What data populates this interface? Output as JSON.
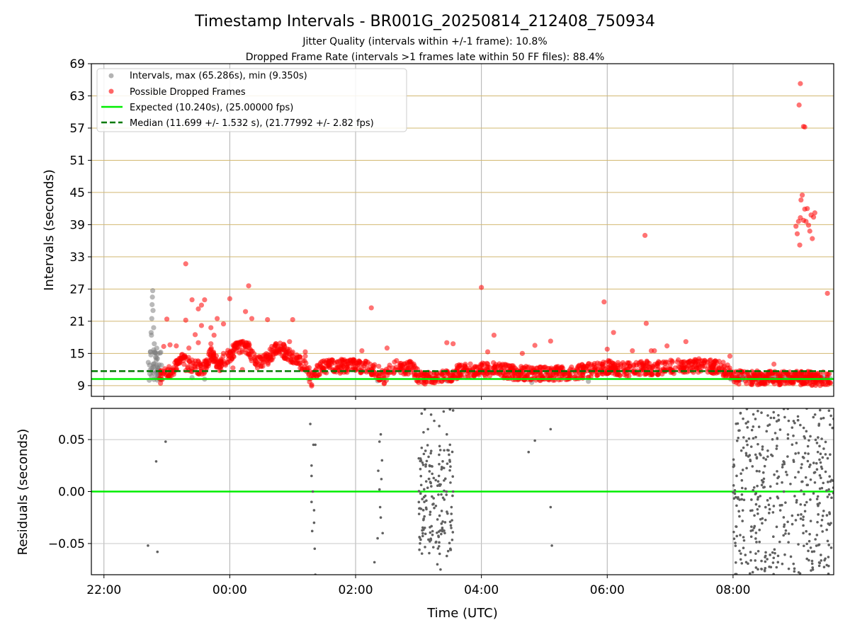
{
  "chart_data": [
    {
      "type": "scatter",
      "title": "Timestamp Intervals - BR001G_20250814_212408_750934",
      "subtitle_lines": [
        "Jitter Quality (intervals within +/-1 frame): 10.8%",
        "Dropped Frame Rate (intervals >1 frames late within 50 FF files): 88.4%"
      ],
      "xlabel": "",
      "ylabel": "Intervals (seconds)",
      "ylim": [
        7,
        69
      ],
      "yticks": [
        9,
        15,
        21,
        27,
        33,
        39,
        45,
        51,
        57,
        63,
        69
      ],
      "ytick_labels": [
        "9",
        "15",
        "21",
        "27",
        "33",
        "39",
        "45",
        "51",
        "57",
        "63",
        "69"
      ],
      "xlim": [
        -2.2,
        9.6
      ],
      "xticks": [
        -2,
        0,
        2,
        4,
        6,
        8
      ],
      "grid": true,
      "legend_position": "upper-left",
      "reference_lines": [
        {
          "name": "Expected (10.240s), (25.00000 fps)",
          "y": 10.24,
          "color": "#00ee00",
          "style": "solid"
        },
        {
          "name": "Median (11.699 +/- 1.532 s), (21.77992 +/- 2.82 fps)",
          "y": 11.699,
          "color": "#007a00",
          "style": "dashed"
        }
      ],
      "series": [
        {
          "name": "Intervals, max (65.286s), min (9.350s)",
          "color": "#808080",
          "points": [
            [
              -1.28,
              10.0
            ],
            [
              -1.27,
              11.2
            ],
            [
              -1.26,
              15.3
            ],
            [
              -1.25,
              18.9
            ],
            [
              -1.245,
              18.4
            ],
            [
              -1.24,
              21.5
            ],
            [
              -1.235,
              24.1
            ],
            [
              -1.23,
              25.5
            ],
            [
              -1.225,
              26.7
            ],
            [
              -1.22,
              23.0
            ],
            [
              -1.21,
              19.8
            ],
            [
              -1.2,
              16.8
            ],
            [
              -1.19,
              15.2
            ],
            [
              -1.18,
              14.3
            ],
            [
              -1.17,
              13.7
            ],
            [
              -1.16,
              12.8
            ],
            [
              -1.15,
              11.6
            ],
            [
              -1.14,
              10.8
            ],
            [
              -1.12,
              10.3
            ],
            [
              -1.1,
              10.1
            ],
            [
              -0.6,
              10.5
            ],
            [
              -0.4,
              10.2
            ],
            [
              1.25,
              10.3
            ],
            [
              2.35,
              9.9
            ],
            [
              2.45,
              10.1
            ],
            [
              3.0,
              10.0
            ],
            [
              3.2,
              10.3
            ],
            [
              3.45,
              9.9
            ],
            [
              4.8,
              9.6
            ],
            [
              5.7,
              9.8
            ],
            [
              8.0,
              10.2
            ],
            [
              8.1,
              10.0
            ],
            [
              8.3,
              10.3
            ],
            [
              8.6,
              10.1
            ],
            [
              8.75,
              10.4
            ],
            [
              8.9,
              10.2
            ],
            [
              9.0,
              11.5
            ],
            [
              9.4,
              10.1
            ],
            [
              9.5,
              10.3
            ]
          ]
        },
        {
          "name": "Possible Dropped Frames",
          "color": "#ff0000",
          "points": [
            [
              -0.65,
              16.0
            ],
            [
              -0.55,
              18.5
            ],
            [
              -0.5,
              17.0
            ],
            [
              -0.45,
              20.2
            ],
            [
              -0.3,
              16.8
            ],
            [
              -0.25,
              18.4
            ],
            [
              -0.1,
              15.0
            ],
            [
              0.25,
              16.5
            ],
            [
              0.5,
              14.0
            ],
            [
              0.85,
              15.8
            ],
            [
              0.95,
              17.2
            ],
            [
              1.2,
              14.5
            ],
            [
              1.3,
              10.8
            ],
            [
              1.4,
              11.0
            ],
            [
              -0.85,
              16.4
            ],
            [
              -0.95,
              16.6
            ],
            [
              -1.05,
              16.3
            ],
            [
              -0.9,
              12.0
            ],
            [
              -0.8,
              13.5
            ],
            [
              -0.7,
              11.8
            ],
            [
              -0.2,
              12.5
            ],
            [
              0.05,
              12.3
            ],
            [
              -1.0,
              21.4
            ],
            [
              -0.7,
              21.2
            ],
            [
              -0.6,
              25.0
            ],
            [
              -0.5,
              23.3
            ],
            [
              -0.45,
              24.0
            ],
            [
              -0.4,
              25.0
            ],
            [
              -0.3,
              19.8
            ],
            [
              -0.2,
              21.5
            ],
            [
              -0.1,
              20.5
            ],
            [
              0.0,
              25.2
            ],
            [
              -0.7,
              31.7
            ],
            [
              0.3,
              27.6
            ],
            [
              0.25,
              22.8
            ],
            [
              0.35,
              21.5
            ],
            [
              0.6,
              21.3
            ],
            [
              1.0,
              21.3
            ],
            [
              1.2,
              15.3
            ],
            [
              0.2,
              12.0
            ],
            [
              2.25,
              23.5
            ],
            [
              2.1,
              15.5
            ],
            [
              2.5,
              16.0
            ],
            [
              3.45,
              17.0
            ],
            [
              3.55,
              16.8
            ],
            [
              4.0,
              27.3
            ],
            [
              4.1,
              15.3
            ],
            [
              4.2,
              18.4
            ],
            [
              4.65,
              15.0
            ],
            [
              4.85,
              16.5
            ],
            [
              5.1,
              17.3
            ],
            [
              5.95,
              24.6
            ],
            [
              6.0,
              15.8
            ],
            [
              6.1,
              18.9
            ],
            [
              6.4,
              15.5
            ],
            [
              6.6,
              37.0
            ],
            [
              6.62,
              20.6
            ],
            [
              6.7,
              15.5
            ],
            [
              6.75,
              15.5
            ],
            [
              6.95,
              16.4
            ],
            [
              7.25,
              17.2
            ],
            [
              7.95,
              14.5
            ],
            [
              8.65,
              13.0
            ],
            [
              8.6,
              11.5
            ],
            [
              9.5,
              26.2
            ],
            [
              9.0,
              38.7
            ],
            [
              9.02,
              37.3
            ],
            [
              9.04,
              39.6
            ],
            [
              9.06,
              35.2
            ],
            [
              9.07,
              40.3
            ],
            [
              9.08,
              43.6
            ],
            [
              9.1,
              44.5
            ],
            [
              9.12,
              39.8
            ],
            [
              9.14,
              41.9
            ],
            [
              9.16,
              39.6
            ],
            [
              9.18,
              42.0
            ],
            [
              9.2,
              38.9
            ],
            [
              9.22,
              37.8
            ],
            [
              9.24,
              40.8
            ],
            [
              9.26,
              36.4
            ],
            [
              9.28,
              40.4
            ],
            [
              9.3,
              41.2
            ],
            [
              9.05,
              61.3
            ],
            [
              9.07,
              65.29
            ],
            [
              9.12,
              57.3
            ],
            [
              9.14,
              57.2
            ]
          ]
        }
      ]
    },
    {
      "type": "scatter",
      "title": "",
      "xlabel": "Time (UTC)",
      "ylabel": "Residuals (seconds)",
      "ylim": [
        -0.08,
        0.08
      ],
      "yticks": [
        -0.05,
        0.0,
        0.05
      ],
      "ytick_labels": [
        "−0.05",
        "0.00",
        "0.05"
      ],
      "xlim": [
        -2.2,
        9.6
      ],
      "xticks": [
        -2,
        0,
        2,
        4,
        6,
        8
      ],
      "xtick_labels": [
        "22:00",
        "00:00",
        "02:00",
        "04:00",
        "06:00",
        "08:00"
      ],
      "grid": true,
      "reference_lines": [
        {
          "name": "zero",
          "y": 0.0,
          "color": "#00ee00",
          "style": "solid"
        }
      ],
      "series": [
        {
          "name": "residuals",
          "color": "#606060",
          "points": [
            [
              -1.3,
              -0.052
            ],
            [
              -1.17,
              0.029
            ],
            [
              -1.15,
              -0.058
            ],
            [
              -1.02,
              0.048
            ],
            [
              1.28,
              0.065
            ],
            [
              1.3,
              0.025
            ],
            [
              1.32,
              0.0
            ],
            [
              1.34,
              -0.03
            ],
            [
              1.36,
              -0.08
            ],
            [
              1.3,
              0.015
            ],
            [
              1.33,
              0.045
            ],
            [
              1.36,
              0.045
            ],
            [
              1.35,
              -0.055
            ],
            [
              1.31,
              -0.038
            ],
            [
              1.34,
              -0.018
            ],
            [
              1.3,
              -0.01
            ],
            [
              2.3,
              -0.068
            ],
            [
              2.35,
              -0.045
            ],
            [
              2.38,
              0.048
            ],
            [
              2.4,
              0.055
            ],
            [
              2.42,
              0.03
            ],
            [
              2.38,
              0.002
            ],
            [
              2.4,
              -0.025
            ],
            [
              2.43,
              -0.04
            ],
            [
              2.36,
              0.02
            ],
            [
              2.41,
              0.012
            ],
            [
              2.39,
              -0.015
            ],
            [
              3.05,
              0.075
            ],
            [
              3.1,
              0.079
            ],
            [
              3.2,
              0.074
            ],
            [
              3.25,
              0.068
            ],
            [
              3.33,
              0.063
            ],
            [
              3.4,
              0.077
            ],
            [
              3.5,
              0.079
            ],
            [
              3.55,
              0.078
            ],
            [
              3.45,
              0.055
            ],
            [
              3.5,
              0.045
            ],
            [
              3.08,
              0.057
            ],
            [
              3.15,
              0.06
            ],
            [
              3.3,
              -0.07
            ],
            [
              3.35,
              -0.075
            ],
            [
              3.18,
              -0.048
            ],
            [
              3.45,
              -0.062
            ],
            [
              3.52,
              -0.035
            ],
            [
              3.55,
              0.0
            ],
            [
              4.75,
              0.038
            ],
            [
              4.85,
              0.049
            ],
            [
              5.1,
              0.06
            ],
            [
              5.1,
              -0.015
            ],
            [
              5.12,
              -0.052
            ]
          ],
          "clusters": [
            {
              "x_range": [
                3.0,
                3.55
              ],
              "y_range": [
                -0.06,
                0.045
              ],
              "count": 160
            },
            {
              "x_range": [
                8.0,
                9.6
              ],
              "y_range": [
                -0.08,
                0.08
              ],
              "count": 420
            }
          ]
        }
      ]
    }
  ],
  "legend": {
    "entries": [
      {
        "label": "Intervals, max (65.286s), min (9.350s)",
        "marker": "dot",
        "color": "#808080"
      },
      {
        "label": "Possible Dropped Frames",
        "marker": "dot",
        "color": "#ff0000"
      },
      {
        "label": "Expected (10.240s), (25.00000 fps)",
        "marker": "line",
        "color": "#00ee00"
      },
      {
        "label": "Median (11.699 +/- 1.532 s), (21.77992 +/- 2.82 fps)",
        "marker": "dashed",
        "color": "#007a00"
      }
    ]
  },
  "colors": {
    "grid_vertical": "#b0b0b0",
    "grid_horizontal_top": "#d2b870",
    "grid_horizontal_bottom": "#c8c8c8",
    "axis": "#000000"
  }
}
